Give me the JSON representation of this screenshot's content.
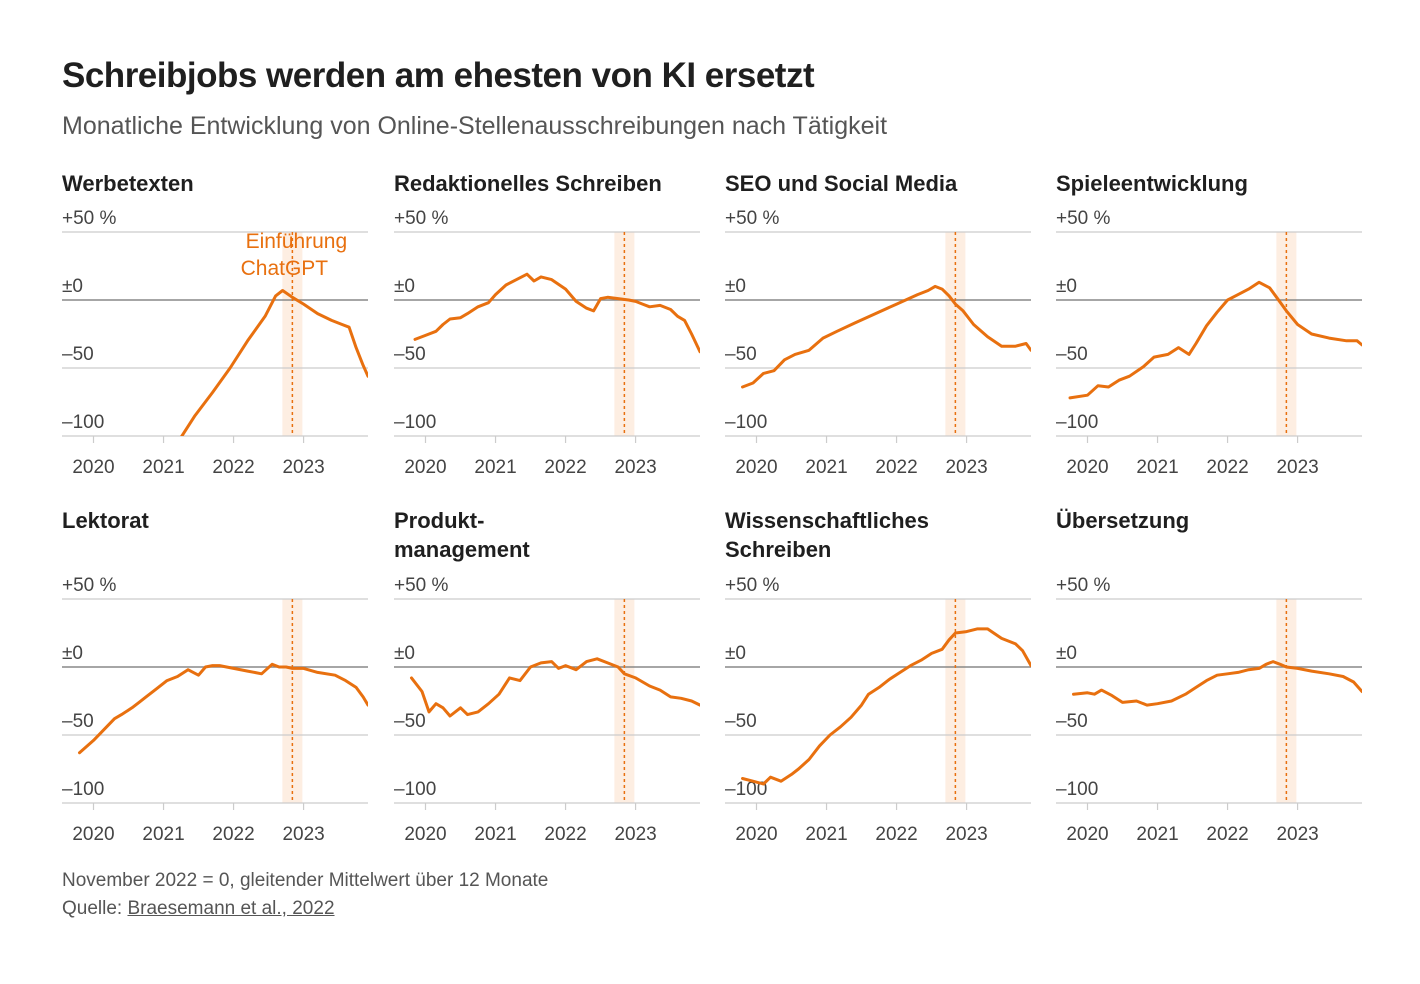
{
  "title": "Schreibjobs werden am ehesten von KI ersetzt",
  "subtitle": "Monatliche Entwicklung von Online-Stellenausschreibungen nach Tätigkeit",
  "annotation": {
    "line1": "Einführung",
    "line2": "ChatGPT"
  },
  "footer": {
    "note": "November 2022 = 0, gleitender Mittelwert über 12 Monate",
    "source_prefix": "Quelle: ",
    "source_link": "Braesemann et al., 2022"
  },
  "colors": {
    "line": "#e8700f",
    "band": "#fdeee2",
    "grid": "#cccccc",
    "zero": "#888888",
    "text": "#222222"
  },
  "chart_data": [
    {
      "type": "line",
      "title": "Werbetexten",
      "unit": "%",
      "ylim": [
        -100,
        50
      ],
      "yticks": [
        50,
        0,
        -50,
        -100
      ],
      "ytick_labels": [
        "+50",
        "±0",
        "–50",
        "–100"
      ],
      "xticks": [
        2020,
        2021,
        2022,
        2023
      ],
      "xlim": [
        2019.55,
        2023.92
      ],
      "event_x": 2022.84,
      "x": [
        2021.2,
        2021.45,
        2021.7,
        2021.95,
        2022.2,
        2022.45,
        2022.6,
        2022.7,
        2022.84,
        2023.0,
        2023.2,
        2023.4,
        2023.55,
        2023.65,
        2023.75,
        2023.85,
        2023.92
      ],
      "values": [
        -105,
        -85,
        -68,
        -50,
        -30,
        -12,
        3,
        7,
        2,
        -3,
        -10,
        -15,
        -18,
        -20,
        -35,
        -48,
        -56
      ]
    },
    {
      "type": "line",
      "title": "Redaktionelles Schreiben",
      "unit": "%",
      "ylim": [
        -100,
        50
      ],
      "yticks": [
        50,
        0,
        -50,
        -100
      ],
      "ytick_labels": [
        "+50",
        "±0",
        "–50",
        "–100"
      ],
      "xticks": [
        2020,
        2021,
        2022,
        2023
      ],
      "xlim": [
        2019.55,
        2023.92
      ],
      "event_x": 2022.84,
      "x": [
        2019.85,
        2020.0,
        2020.15,
        2020.25,
        2020.35,
        2020.5,
        2020.6,
        2020.75,
        2020.9,
        2021.0,
        2021.15,
        2021.3,
        2021.45,
        2021.55,
        2021.65,
        2021.8,
        2022.0,
        2022.15,
        2022.3,
        2022.4,
        2022.5,
        2022.6,
        2022.75,
        2022.9,
        2023.0,
        2023.1,
        2023.2,
        2023.35,
        2023.5,
        2023.6,
        2023.7,
        2023.8,
        2023.92
      ],
      "values": [
        -29,
        -26,
        -23,
        -18,
        -14,
        -13,
        -10,
        -5,
        -2,
        4,
        11,
        15,
        19,
        14,
        17,
        15,
        8,
        -1,
        -6,
        -8,
        1,
        2,
        1,
        0,
        -1,
        -3,
        -5,
        -4,
        -7,
        -12,
        -15,
        -25,
        -38
      ]
    },
    {
      "type": "line",
      "title": "SEO und Social Media",
      "unit": "%",
      "ylim": [
        -100,
        50
      ],
      "yticks": [
        50,
        0,
        -50,
        -100
      ],
      "ytick_labels": [
        "+50",
        "±0",
        "–50",
        "–100"
      ],
      "xticks": [
        2020,
        2021,
        2022,
        2023
      ],
      "xlim": [
        2019.55,
        2023.92
      ],
      "event_x": 2022.84,
      "x": [
        2019.8,
        2019.95,
        2020.1,
        2020.25,
        2020.4,
        2020.55,
        2020.75,
        2020.95,
        2021.15,
        2021.4,
        2021.7,
        2022.0,
        2022.3,
        2022.45,
        2022.55,
        2022.65,
        2022.75,
        2022.84,
        2022.95,
        2023.1,
        2023.3,
        2023.5,
        2023.7,
        2023.85,
        2023.92
      ],
      "values": [
        -64,
        -61,
        -54,
        -52,
        -44,
        -40,
        -37,
        -28,
        -23,
        -17,
        -10,
        -3,
        4,
        7,
        10,
        8,
        3,
        -3,
        -8,
        -18,
        -27,
        -34,
        -34,
        -32,
        -37
      ]
    },
    {
      "type": "line",
      "title": "Spieleentwicklung",
      "unit": "%",
      "ylim": [
        -100,
        50
      ],
      "yticks": [
        50,
        0,
        -50,
        -100
      ],
      "ytick_labels": [
        "+50",
        "±0",
        "–50",
        "–100"
      ],
      "xticks": [
        2020,
        2021,
        2022,
        2023
      ],
      "xlim": [
        2019.55,
        2023.92
      ],
      "event_x": 2022.84,
      "x": [
        2019.75,
        2020.0,
        2020.15,
        2020.3,
        2020.45,
        2020.6,
        2020.8,
        2020.95,
        2021.15,
        2021.3,
        2021.45,
        2021.55,
        2021.7,
        2021.85,
        2022.0,
        2022.15,
        2022.3,
        2022.45,
        2022.6,
        2022.7,
        2022.84,
        2023.0,
        2023.2,
        2023.45,
        2023.7,
        2023.85,
        2023.92
      ],
      "values": [
        -72,
        -70,
        -63,
        -64,
        -59,
        -56,
        -49,
        -42,
        -40,
        -35,
        -40,
        -32,
        -19,
        -9,
        0,
        4,
        8,
        13,
        9,
        2,
        -8,
        -18,
        -25,
        -28,
        -30,
        -30,
        -33
      ]
    },
    {
      "type": "line",
      "title": "Lektorat",
      "unit": "%",
      "ylim": [
        -100,
        50
      ],
      "yticks": [
        50,
        0,
        -50,
        -100
      ],
      "ytick_labels": [
        "+50",
        "±0",
        "–50",
        "–100"
      ],
      "xticks": [
        2020,
        2021,
        2022,
        2023
      ],
      "xlim": [
        2019.55,
        2023.92
      ],
      "event_x": 2022.84,
      "x": [
        2019.8,
        2020.0,
        2020.15,
        2020.3,
        2020.4,
        2020.55,
        2020.65,
        2020.75,
        2020.9,
        2021.05,
        2021.2,
        2021.35,
        2021.5,
        2021.6,
        2021.7,
        2021.8,
        2022.0,
        2022.2,
        2022.4,
        2022.55,
        2022.65,
        2022.75,
        2022.84,
        2023.0,
        2023.2,
        2023.45,
        2023.6,
        2023.75,
        2023.85,
        2023.92
      ],
      "values": [
        -63,
        -54,
        -46,
        -38,
        -35,
        -30,
        -26,
        -22,
        -16,
        -10,
        -7,
        -2,
        -6,
        0,
        1,
        1,
        -1,
        -3,
        -5,
        2,
        0,
        0,
        -1,
        -1,
        -4,
        -6,
        -10,
        -15,
        -22,
        -28
      ]
    },
    {
      "type": "line",
      "title": "Produkt-\nmanagement",
      "unit": "%",
      "ylim": [
        -100,
        50
      ],
      "yticks": [
        50,
        0,
        -50,
        -100
      ],
      "ytick_labels": [
        "+50",
        "±0",
        "–50",
        "–100"
      ],
      "xticks": [
        2020,
        2021,
        2022,
        2023
      ],
      "xlim": [
        2019.55,
        2023.92
      ],
      "event_x": 2022.84,
      "x": [
        2019.8,
        2019.95,
        2020.05,
        2020.15,
        2020.25,
        2020.35,
        2020.5,
        2020.6,
        2020.75,
        2020.9,
        2021.05,
        2021.2,
        2021.35,
        2021.5,
        2021.65,
        2021.8,
        2021.9,
        2022.0,
        2022.15,
        2022.3,
        2022.45,
        2022.6,
        2022.75,
        2022.84,
        2023.0,
        2023.2,
        2023.35,
        2023.5,
        2023.65,
        2023.8,
        2023.92
      ],
      "values": [
        -8,
        -18,
        -33,
        -27,
        -30,
        -36,
        -30,
        -35,
        -33,
        -27,
        -20,
        -8,
        -10,
        0,
        3,
        4,
        -1,
        1,
        -2,
        4,
        6,
        3,
        0,
        -5,
        -8,
        -14,
        -17,
        -22,
        -23,
        -25,
        -28
      ]
    },
    {
      "type": "line",
      "title": "Wissenschaftliches\nSchreiben",
      "unit": "%",
      "ylim": [
        -100,
        50
      ],
      "yticks": [
        50,
        0,
        -50,
        -100
      ],
      "ytick_labels": [
        "+50",
        "±0",
        "–50",
        "–100"
      ],
      "xticks": [
        2020,
        2021,
        2022,
        2023
      ],
      "xlim": [
        2019.55,
        2023.92
      ],
      "event_x": 2022.84,
      "x": [
        2019.8,
        2019.95,
        2020.1,
        2020.2,
        2020.35,
        2020.5,
        2020.6,
        2020.75,
        2020.9,
        2021.05,
        2021.2,
        2021.35,
        2021.5,
        2021.6,
        2021.75,
        2021.9,
        2022.05,
        2022.2,
        2022.35,
        2022.5,
        2022.65,
        2022.75,
        2022.84,
        2023.0,
        2023.15,
        2023.3,
        2023.5,
        2023.7,
        2023.8,
        2023.92
      ],
      "values": [
        -82,
        -84,
        -86,
        -81,
        -84,
        -79,
        -75,
        -68,
        -58,
        -50,
        -44,
        -37,
        -28,
        -20,
        -15,
        -9,
        -4,
        1,
        5,
        10,
        13,
        20,
        25,
        26,
        28,
        28,
        21,
        17,
        12,
        1
      ]
    },
    {
      "type": "line",
      "title": "Übersetzung",
      "unit": "%",
      "ylim": [
        -100,
        50
      ],
      "yticks": [
        50,
        0,
        -50,
        -100
      ],
      "ytick_labels": [
        "+50",
        "±0",
        "–50",
        "–100"
      ],
      "xticks": [
        2020,
        2021,
        2022,
        2023
      ],
      "xlim": [
        2019.55,
        2023.92
      ],
      "event_x": 2022.84,
      "x": [
        2019.8,
        2020.0,
        2020.1,
        2020.2,
        2020.35,
        2020.5,
        2020.7,
        2020.85,
        2021.0,
        2021.2,
        2021.4,
        2021.55,
        2021.7,
        2021.85,
        2022.0,
        2022.15,
        2022.3,
        2022.45,
        2022.55,
        2022.65,
        2022.75,
        2022.84,
        2023.0,
        2023.2,
        2023.45,
        2023.65,
        2023.8,
        2023.92
      ],
      "values": [
        -20,
        -19,
        -20,
        -17,
        -21,
        -26,
        -25,
        -28,
        -27,
        -25,
        -20,
        -15,
        -10,
        -6,
        -5,
        -4,
        -2,
        -1,
        2,
        4,
        2,
        0,
        -1,
        -3,
        -5,
        -7,
        -11,
        -18
      ]
    }
  ]
}
